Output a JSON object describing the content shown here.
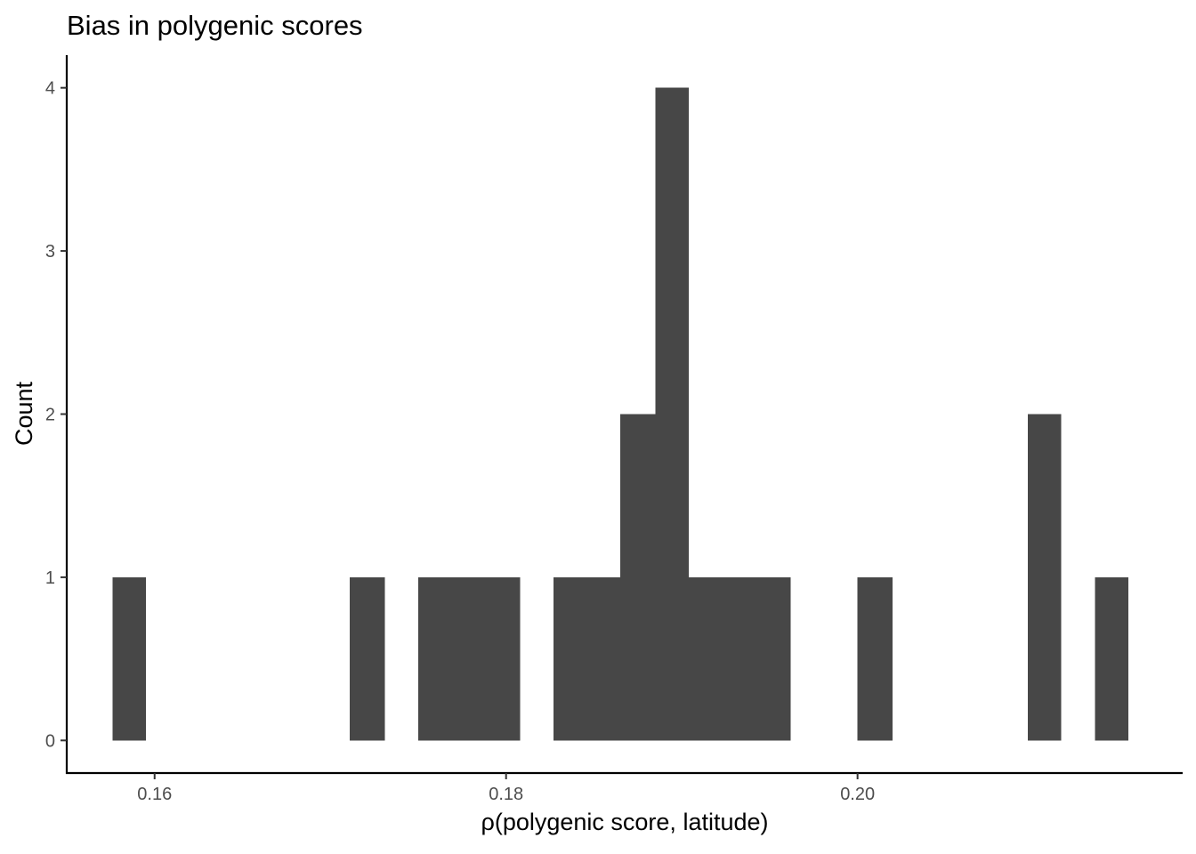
{
  "chart_data": {
    "type": "bar",
    "title": "Bias in polygenic scores",
    "xlabel": "ρ(polygenic score, latitude)",
    "ylabel": "Count",
    "xlim": [
      0.155,
      0.2185
    ],
    "ylim": [
      -0.2,
      4.2
    ],
    "x_ticks": [
      0.16,
      0.18,
      0.2
    ],
    "x_tick_labels": [
      "0.16",
      "0.18",
      "0.20"
    ],
    "y_ticks": [
      0,
      1,
      2,
      3,
      4
    ],
    "y_tick_labels": [
      "0",
      "1",
      "2",
      "3",
      "4"
    ],
    "bin_width": 0.00193,
    "bins": [
      {
        "x0": 0.1576,
        "x1": 0.1595,
        "count": 1
      },
      {
        "x0": 0.1711,
        "x1": 0.1731,
        "count": 1
      },
      {
        "x0": 0.175,
        "x1": 0.1769,
        "count": 1
      },
      {
        "x0": 0.1769,
        "x1": 0.1788,
        "count": 1
      },
      {
        "x0": 0.1788,
        "x1": 0.1808,
        "count": 1
      },
      {
        "x0": 0.1827,
        "x1": 0.1846,
        "count": 1
      },
      {
        "x0": 0.1846,
        "x1": 0.1865,
        "count": 1
      },
      {
        "x0": 0.1865,
        "x1": 0.1885,
        "count": 2
      },
      {
        "x0": 0.1885,
        "x1": 0.1904,
        "count": 4
      },
      {
        "x0": 0.1904,
        "x1": 0.1923,
        "count": 1
      },
      {
        "x0": 0.1923,
        "x1": 0.1942,
        "count": 1
      },
      {
        "x0": 0.1942,
        "x1": 0.1962,
        "count": 1
      },
      {
        "x0": 0.2,
        "x1": 0.202,
        "count": 1
      },
      {
        "x0": 0.2097,
        "x1": 0.2116,
        "count": 2
      },
      {
        "x0": 0.2135,
        "x1": 0.2154,
        "count": 1
      }
    ],
    "bar_color": "#474747",
    "grid": false,
    "legend": "none"
  }
}
